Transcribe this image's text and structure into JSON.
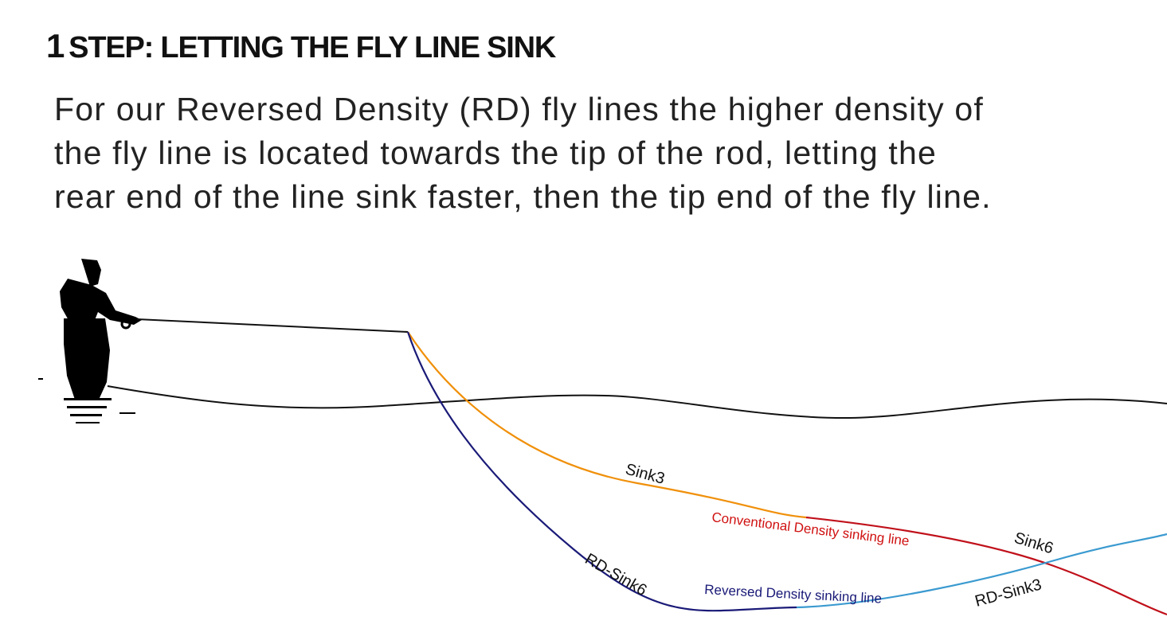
{
  "title": {
    "number": "1",
    "text": "STEP: LETTING THE FLY LINE SINK"
  },
  "description": [
    "For our Reversed Density (RD) fly lines the higher density of",
    "the fly line is located  towards the tip of the rod, letting the",
    "rear end of the line sink faster, then the tip end of the fly line."
  ],
  "diagram": {
    "labels": {
      "sink3": "Sink3",
      "conventional": "Conventional Density sinking line",
      "sink6": "Sink6",
      "rd_sink6": "RD-Sink6",
      "reversed": "Reversed Density sinking line",
      "rd_sink3": "RD-Sink3"
    },
    "colors": {
      "sink3": "#f0900a",
      "sink6": "#c0101a",
      "rd_sink6": "#1a1a78",
      "rd_sink3": "#3a9ad0",
      "conventional_label": "#d01010",
      "reversed_label": "#1a1a78"
    }
  }
}
